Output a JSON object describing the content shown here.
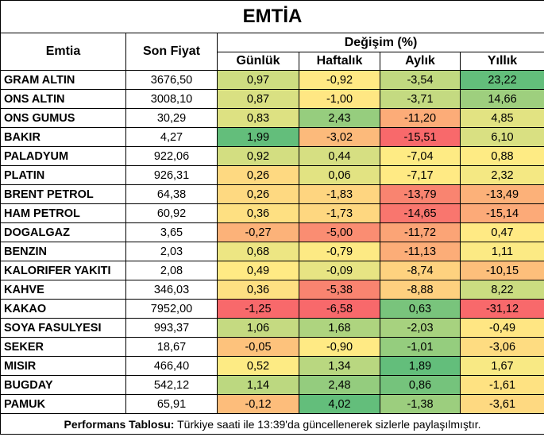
{
  "title": "EMTİA",
  "headers": {
    "commodity": "Emtia",
    "last_price": "Son Fiyat",
    "change": "Değişim (%)",
    "daily": "Günlük",
    "weekly": "Haftalık",
    "monthly": "Aylık",
    "yearly": "Yıllık"
  },
  "rows": [
    {
      "name": "GRAM ALTIN",
      "price": "3676,50",
      "daily": "0,97",
      "weekly": "-0,92",
      "monthly": "-3,54",
      "yearly": "23,22"
    },
    {
      "name": "ONS ALTIN",
      "price": "3008,10",
      "daily": "0,87",
      "weekly": "-1,00",
      "monthly": "-3,71",
      "yearly": "14,66"
    },
    {
      "name": "ONS GUMUS",
      "price": "30,29",
      "daily": "0,83",
      "weekly": "2,43",
      "monthly": "-11,20",
      "yearly": "4,85"
    },
    {
      "name": "BAKIR",
      "price": "4,27",
      "daily": "1,99",
      "weekly": "-3,02",
      "monthly": "-15,51",
      "yearly": "6,10"
    },
    {
      "name": "PALADYUM",
      "price": "922,06",
      "daily": "0,92",
      "weekly": "0,44",
      "monthly": "-7,04",
      "yearly": "0,88"
    },
    {
      "name": "PLATIN",
      "price": "926,31",
      "daily": "0,26",
      "weekly": "0,06",
      "monthly": "-7,17",
      "yearly": "2,32"
    },
    {
      "name": "BRENT PETROL",
      "price": "64,38",
      "daily": "0,26",
      "weekly": "-1,83",
      "monthly": "-13,79",
      "yearly": "-13,49"
    },
    {
      "name": "HAM PETROL",
      "price": "60,92",
      "daily": "0,36",
      "weekly": "-1,73",
      "monthly": "-14,65",
      "yearly": "-15,14"
    },
    {
      "name": "DOGALGAZ",
      "price": "3,65",
      "daily": "-0,27",
      "weekly": "-5,00",
      "monthly": "-11,72",
      "yearly": "0,47"
    },
    {
      "name": "BENZIN",
      "price": "2,03",
      "daily": "0,68",
      "weekly": "-0,79",
      "monthly": "-11,13",
      "yearly": "1,11"
    },
    {
      "name": "KALORIFER YAKITI",
      "price": "2,08",
      "daily": "0,49",
      "weekly": "-0,09",
      "monthly": "-8,74",
      "yearly": "-10,15"
    },
    {
      "name": "KAHVE",
      "price": "346,03",
      "daily": "0,36",
      "weekly": "-5,38",
      "monthly": "-8,88",
      "yearly": "8,22"
    },
    {
      "name": "KAKAO",
      "price": "7952,00",
      "daily": "-1,25",
      "weekly": "-6,58",
      "monthly": "0,63",
      "yearly": "-31,12"
    },
    {
      "name": "SOYA FASULYESI",
      "price": "993,37",
      "daily": "1,06",
      "weekly": "1,68",
      "monthly": "-2,03",
      "yearly": "-0,49"
    },
    {
      "name": "SEKER",
      "price": "18,67",
      "daily": "-0,05",
      "weekly": "-0,90",
      "monthly": "-1,01",
      "yearly": "-3,06"
    },
    {
      "name": "MISIR",
      "price": "466,40",
      "daily": "0,52",
      "weekly": "1,34",
      "monthly": "1,89",
      "yearly": "1,67"
    },
    {
      "name": "BUGDAY",
      "price": "542,12",
      "daily": "1,14",
      "weekly": "2,48",
      "monthly": "0,86",
      "yearly": "-1,61"
    },
    {
      "name": "PAMUK",
      "price": "65,91",
      "daily": "-0,12",
      "weekly": "4,02",
      "monthly": "-1,38",
      "yearly": "-3,61"
    }
  ],
  "footer": {
    "label": "Performans Tablosu:",
    "text": " Türkiye saati ile 13:39'da güncellenerek sizlerle paylaşılmıştır."
  },
  "colors": {
    "green": "#63be7b",
    "yellow": "#ffeb84",
    "red": "#f8696b",
    "border": "#000000"
  }
}
